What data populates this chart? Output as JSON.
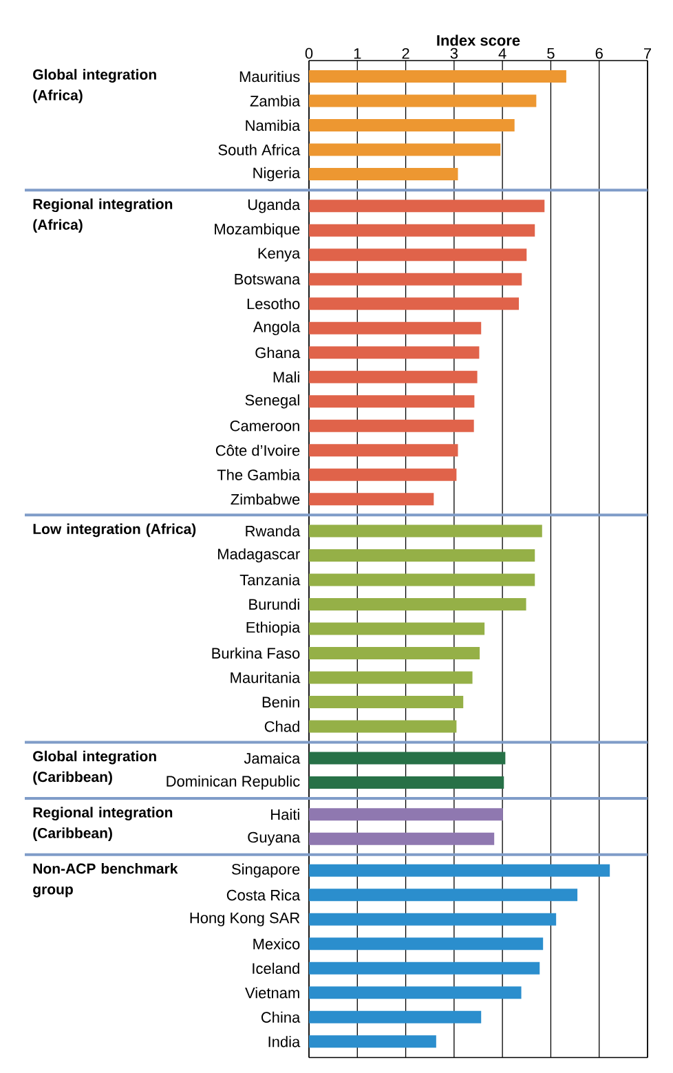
{
  "chart_data": [
    {
      "type": "bar",
      "orientation": "horizontal",
      "title": "Global integration (Africa)",
      "xlabel": "Index score",
      "categories": [
        "Mauritius",
        "Zambia",
        "Namibia",
        "South Africa",
        "Nigeria"
      ],
      "values": [
        5.32,
        4.7,
        4.25,
        3.96,
        3.08
      ],
      "color": "#ed9731",
      "xlim": [
        0,
        7
      ],
      "xticks": [
        0,
        1,
        2,
        3,
        4,
        5,
        6,
        7
      ],
      "grid": "x"
    },
    {
      "type": "bar",
      "orientation": "horizontal",
      "title": "Regional integration (Africa)",
      "categories": [
        "Uganda",
        "Mozambique",
        "Kenya",
        "Botswana",
        "Lesotho",
        "Angola",
        "Ghana",
        "Mali",
        "Senegal",
        "Cameroon",
        "Côte d’Ivoire",
        "The Gambia",
        "Zimbabwe"
      ],
      "values": [
        4.87,
        4.67,
        4.5,
        4.4,
        4.34,
        3.56,
        3.52,
        3.48,
        3.42,
        3.41,
        3.08,
        3.05,
        2.58
      ],
      "color": "#e0634a",
      "xlim": [
        0,
        7
      ],
      "xticks": [
        0,
        1,
        2,
        3,
        4,
        5,
        6,
        7
      ],
      "grid": "x",
      "tick_labels": "y"
    },
    {
      "type": "bar",
      "orientation": "horizontal",
      "title": "Low integration (Africa)",
      "categories": [
        "Rwanda",
        "Madagascar",
        "Tanzania",
        "Burundi",
        "Ethiopia",
        "Burkina Faso",
        "Mauritania",
        "Benin",
        "Chad"
      ],
      "values": [
        4.82,
        4.67,
        4.67,
        4.49,
        3.63,
        3.53,
        3.38,
        3.19,
        3.05
      ],
      "color": "#95b047",
      "xlim": [
        0,
        7
      ],
      "xticks": [
        0,
        1,
        2,
        3,
        4,
        5,
        6,
        7
      ],
      "grid": "x",
      "tick_labels": "y"
    },
    {
      "type": "bar",
      "orientation": "horizontal",
      "title": "Global integration (Caribbean)",
      "categories": [
        "Jamaica",
        "Dominican Republic"
      ],
      "values": [
        4.06,
        4.03
      ],
      "color": "#277147",
      "xlim": [
        0,
        7
      ],
      "xticks": [
        0,
        1,
        2,
        3,
        4,
        5,
        6,
        7
      ],
      "grid": "x",
      "tick_labels": "y"
    },
    {
      "type": "bar",
      "orientation": "horizontal",
      "title": "Regional integration (Caribbean)",
      "categories": [
        "Haiti",
        "Guyana"
      ],
      "values": [
        4.01,
        3.83
      ],
      "color": "#8f78b0",
      "xlim": [
        0,
        7
      ],
      "xticks": [
        0,
        1,
        2,
        3,
        4,
        5,
        6,
        7
      ],
      "grid": "x",
      "tick_labels": "y"
    },
    {
      "type": "bar",
      "orientation": "horizontal",
      "title": "Non-ACP benchmark group",
      "categories": [
        "Singapore",
        "Costa Rica",
        "Hong Kong SAR",
        "Mexico",
        "Iceland",
        "Vietnam",
        "China",
        "India"
      ],
      "values": [
        6.22,
        5.55,
        5.11,
        4.84,
        4.77,
        4.39,
        3.56,
        2.63
      ],
      "color": "#2b8ecd",
      "xlim": [
        0,
        7
      ],
      "xticks": [
        0,
        1,
        2,
        3,
        4,
        5,
        6,
        7
      ],
      "grid": "x",
      "tick_labels": "y"
    }
  ]
}
